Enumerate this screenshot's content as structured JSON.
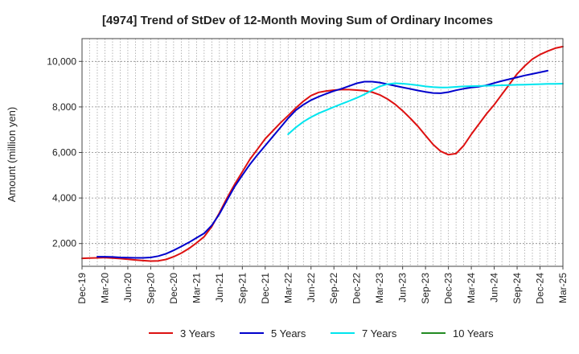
{
  "chart_data": {
    "type": "line",
    "title": "[4974]  Trend of StDev of 12-Month Moving Sum of Ordinary Incomes",
    "xlabel": "",
    "ylabel": "Amount (million yen)",
    "ylim": [
      1000,
      11000
    ],
    "y_ticks": [
      2000,
      4000,
      6000,
      8000,
      10000
    ],
    "y_tick_labels": [
      "2,000",
      "4,000",
      "6,000",
      "8,000",
      "10,000"
    ],
    "x_ticks": [
      "Dec-19",
      "Mar-20",
      "Jun-20",
      "Sep-20",
      "Dec-20",
      "Mar-21",
      "Jun-21",
      "Sep-21",
      "Dec-21",
      "Mar-22",
      "Jun-22",
      "Sep-22",
      "Dec-22",
      "Mar-23",
      "Jun-23",
      "Sep-23",
      "Dec-23",
      "Mar-24",
      "Jun-24",
      "Sep-24",
      "Dec-24",
      "Mar-25"
    ],
    "x_start": "Dec-19",
    "months": 63,
    "grid": true,
    "legend_position": "bottom",
    "series": [
      {
        "name": "3 Years",
        "color": "#dd1111",
        "start_index": 0,
        "values": [
          1350,
          1360,
          1370,
          1380,
          1360,
          1340,
          1310,
          1280,
          1250,
          1230,
          1240,
          1300,
          1420,
          1580,
          1780,
          2030,
          2300,
          2750,
          3350,
          4000,
          4600,
          5150,
          5700,
          6150,
          6600,
          6950,
          7300,
          7620,
          7950,
          8250,
          8500,
          8640,
          8700,
          8740,
          8760,
          8760,
          8740,
          8710,
          8650,
          8530,
          8350,
          8120,
          7830,
          7500,
          7150,
          6750,
          6350,
          6050,
          5900,
          5950,
          6300,
          6800,
          7250,
          7700,
          8100,
          8550,
          9000,
          9450,
          9800,
          10100,
          10300,
          10450,
          10580,
          10650
        ]
      },
      {
        "name": "5 Years",
        "color": "#0000cc",
        "start_index": 2,
        "values": [
          1420,
          1420,
          1410,
          1390,
          1380,
          1370,
          1370,
          1390,
          1450,
          1550,
          1700,
          1870,
          2050,
          2250,
          2450,
          2800,
          3300,
          3900,
          4500,
          5000,
          5480,
          5900,
          6300,
          6700,
          7100,
          7500,
          7850,
          8100,
          8300,
          8450,
          8580,
          8700,
          8800,
          8920,
          9040,
          9110,
          9110,
          9070,
          9000,
          8930,
          8860,
          8790,
          8720,
          8660,
          8610,
          8600,
          8650,
          8730,
          8800,
          8850,
          8890,
          8950,
          9050,
          9140,
          9220,
          9300,
          9380,
          9450,
          9520,
          9590
        ]
      },
      {
        "name": "7 Years",
        "color": "#00e5ee",
        "start_index": 27,
        "values": [
          6800,
          7100,
          7350,
          7550,
          7720,
          7860,
          8000,
          8130,
          8260,
          8400,
          8550,
          8730,
          8900,
          9000,
          9040,
          9020,
          8990,
          8950,
          8900,
          8870,
          8850,
          8860,
          8880,
          8900,
          8910,
          8920,
          8930,
          8940,
          8950,
          8960,
          8970,
          8980,
          8990,
          9000,
          9010,
          9010,
          9020
        ]
      },
      {
        "name": "10 Years",
        "color": "#228b22",
        "start_index": 0,
        "values": []
      }
    ]
  }
}
